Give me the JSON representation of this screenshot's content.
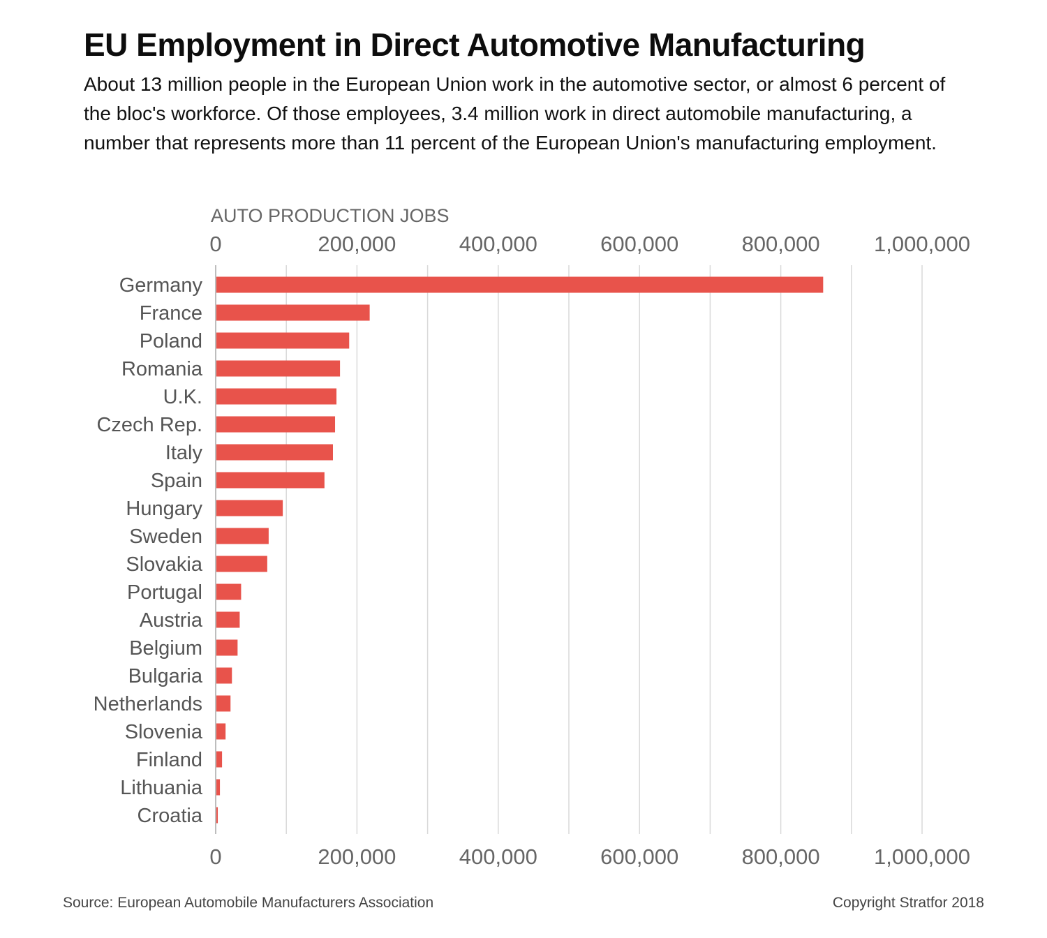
{
  "header": {
    "title": "EU Employment in Direct Automotive Manufacturing",
    "subtitle": "About 13 million people in the European Union work in the automotive sector, or almost 6 percent of the bloc's workforce. Of those employees, 3.4 million work in direct automobile manufacturing, a number that represents more than 11 percent of the European Union's manufacturing employment."
  },
  "footer": {
    "source": "Source: European Automobile Manufacturers Association",
    "copyright": "Copyright Stratfor 2018"
  },
  "colors": {
    "bar": "#e8534b",
    "grid": "#d9d9d9",
    "axis_text": "#666666",
    "label_text": "#555555"
  },
  "chart_data": {
    "type": "bar",
    "orientation": "horizontal",
    "xlabel": "AUTO PRODUCTION JOBS",
    "xlim": [
      0,
      1000000
    ],
    "ticks": [
      0,
      200000,
      400000,
      600000,
      800000,
      1000000
    ],
    "tick_labels": [
      "0",
      "200,000",
      "400,000",
      "600,000",
      "800,000",
      "1,000,000"
    ],
    "grid": true,
    "categories": [
      "Germany",
      "France",
      "Poland",
      "Romania",
      "U.K.",
      "Czech Rep.",
      "Italy",
      "Spain",
      "Hungary",
      "Sweden",
      "Slovakia",
      "Portugal",
      "Austria",
      "Belgium",
      "Bulgaria",
      "Netherlands",
      "Slovenia",
      "Finland",
      "Lithuania",
      "Croatia"
    ],
    "values": [
      860000,
      218000,
      189000,
      176000,
      171000,
      169000,
      166000,
      154000,
      95000,
      75000,
      73000,
      36000,
      34000,
      31000,
      23000,
      21000,
      14000,
      9000,
      6000,
      3000
    ]
  }
}
